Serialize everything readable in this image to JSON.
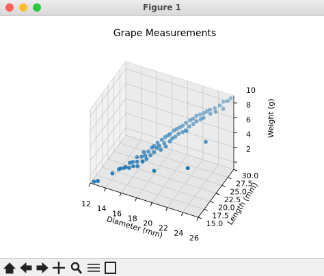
{
  "window": {
    "title": "Figure 1"
  },
  "chart_data": {
    "type": "scatter3d",
    "title": "Grape Measurements",
    "xlabel": "Diameter (mm)",
    "ylabel": "Length (mm)",
    "zlabel": "Weight (g)",
    "color": "#1f77b4",
    "x": [
      12.4,
      12.8,
      14.2,
      14.8,
      15.1,
      15.3,
      15.6,
      15.9,
      16.0,
      16.2,
      16.4,
      16.5,
      16.7,
      16.9,
      17.0,
      17.1,
      17.3,
      17.4,
      17.6,
      17.7,
      17.9,
      18.0,
      18.1,
      18.3,
      18.4,
      18.5,
      18.7,
      18.8,
      19.0,
      19.1,
      19.2,
      19.4,
      19.5,
      19.6,
      19.8,
      19.9,
      20.0,
      20.2,
      20.3,
      20.5,
      20.6,
      20.8,
      21.0,
      21.1,
      21.3,
      21.5,
      21.6,
      21.8,
      22.0,
      22.1,
      22.3,
      22.5,
      22.7,
      22.9,
      23.0,
      23.2,
      23.5,
      23.7,
      24.0,
      24.2,
      24.5,
      24.8,
      25.0,
      25.3,
      25.6,
      22.8,
      16.5,
      18.9,
      20.7,
      23.9
    ],
    "y": [
      15.3,
      15.6,
      17.2,
      18.0,
      17.8,
      18.5,
      18.2,
      19.0,
      18.4,
      19.3,
      18.8,
      20.1,
      19.5,
      19.0,
      20.4,
      21.0,
      19.8,
      20.6,
      21.3,
      20.2,
      21.8,
      20.9,
      22.0,
      21.4,
      22.6,
      21.9,
      22.3,
      23.1,
      22.0,
      23.5,
      22.8,
      23.8,
      22.5,
      24.0,
      23.2,
      24.5,
      23.6,
      24.8,
      23.9,
      25.1,
      24.3,
      25.4,
      24.7,
      25.8,
      25.0,
      26.2,
      25.5,
      26.5,
      25.9,
      26.9,
      26.3,
      27.2,
      26.8,
      27.5,
      27.0,
      27.8,
      28.1,
      27.6,
      28.5,
      28.2,
      29.0,
      29.5,
      28.8,
      29.6,
      30.0,
      21.0,
      22.5,
      19.5,
      27.5,
      25.0
    ],
    "z": [
      1.2,
      1.3,
      2.1,
      2.5,
      2.8,
      2.6,
      3.0,
      3.3,
      2.9,
      3.4,
      3.1,
      3.8,
      3.5,
      3.2,
      3.9,
      4.3,
      3.6,
      4.1,
      4.4,
      3.9,
      4.8,
      4.2,
      5.0,
      4.5,
      5.3,
      4.9,
      5.1,
      5.6,
      4.8,
      5.9,
      5.4,
      6.1,
      5.2,
      6.3,
      5.7,
      6.6,
      6.0,
      6.8,
      6.2,
      7.0,
      6.5,
      7.2,
      6.7,
      7.5,
      6.9,
      7.8,
      7.3,
      8.0,
      7.6,
      8.3,
      7.9,
      8.5,
      8.1,
      8.7,
      8.3,
      8.9,
      9.1,
      8.8,
      9.3,
      9.0,
      9.6,
      10.0,
      9.4,
      10.2,
      10.5,
      4.0,
      2.2,
      3.0,
      5.5,
      6.2
    ],
    "xlim": [
      12,
      26
    ],
    "ylim": [
      15,
      30
    ],
    "zlim": [
      1,
      11
    ],
    "xticks": [
      12,
      14,
      16,
      18,
      20,
      22,
      24,
      26
    ],
    "yticks": [
      {
        "value": 15,
        "label": "15.0"
      },
      {
        "value": 17.5,
        "label": "17.5"
      },
      {
        "value": 20,
        "label": "20.0"
      },
      {
        "value": 22.5,
        "label": "22.5"
      },
      {
        "value": 25,
        "label": "25.0"
      },
      {
        "value": 27.5,
        "label": "27.5"
      },
      {
        "value": 30,
        "label": "30.0"
      }
    ],
    "zticks": [
      2,
      4,
      6,
      8,
      10
    ],
    "grid": true
  }
}
